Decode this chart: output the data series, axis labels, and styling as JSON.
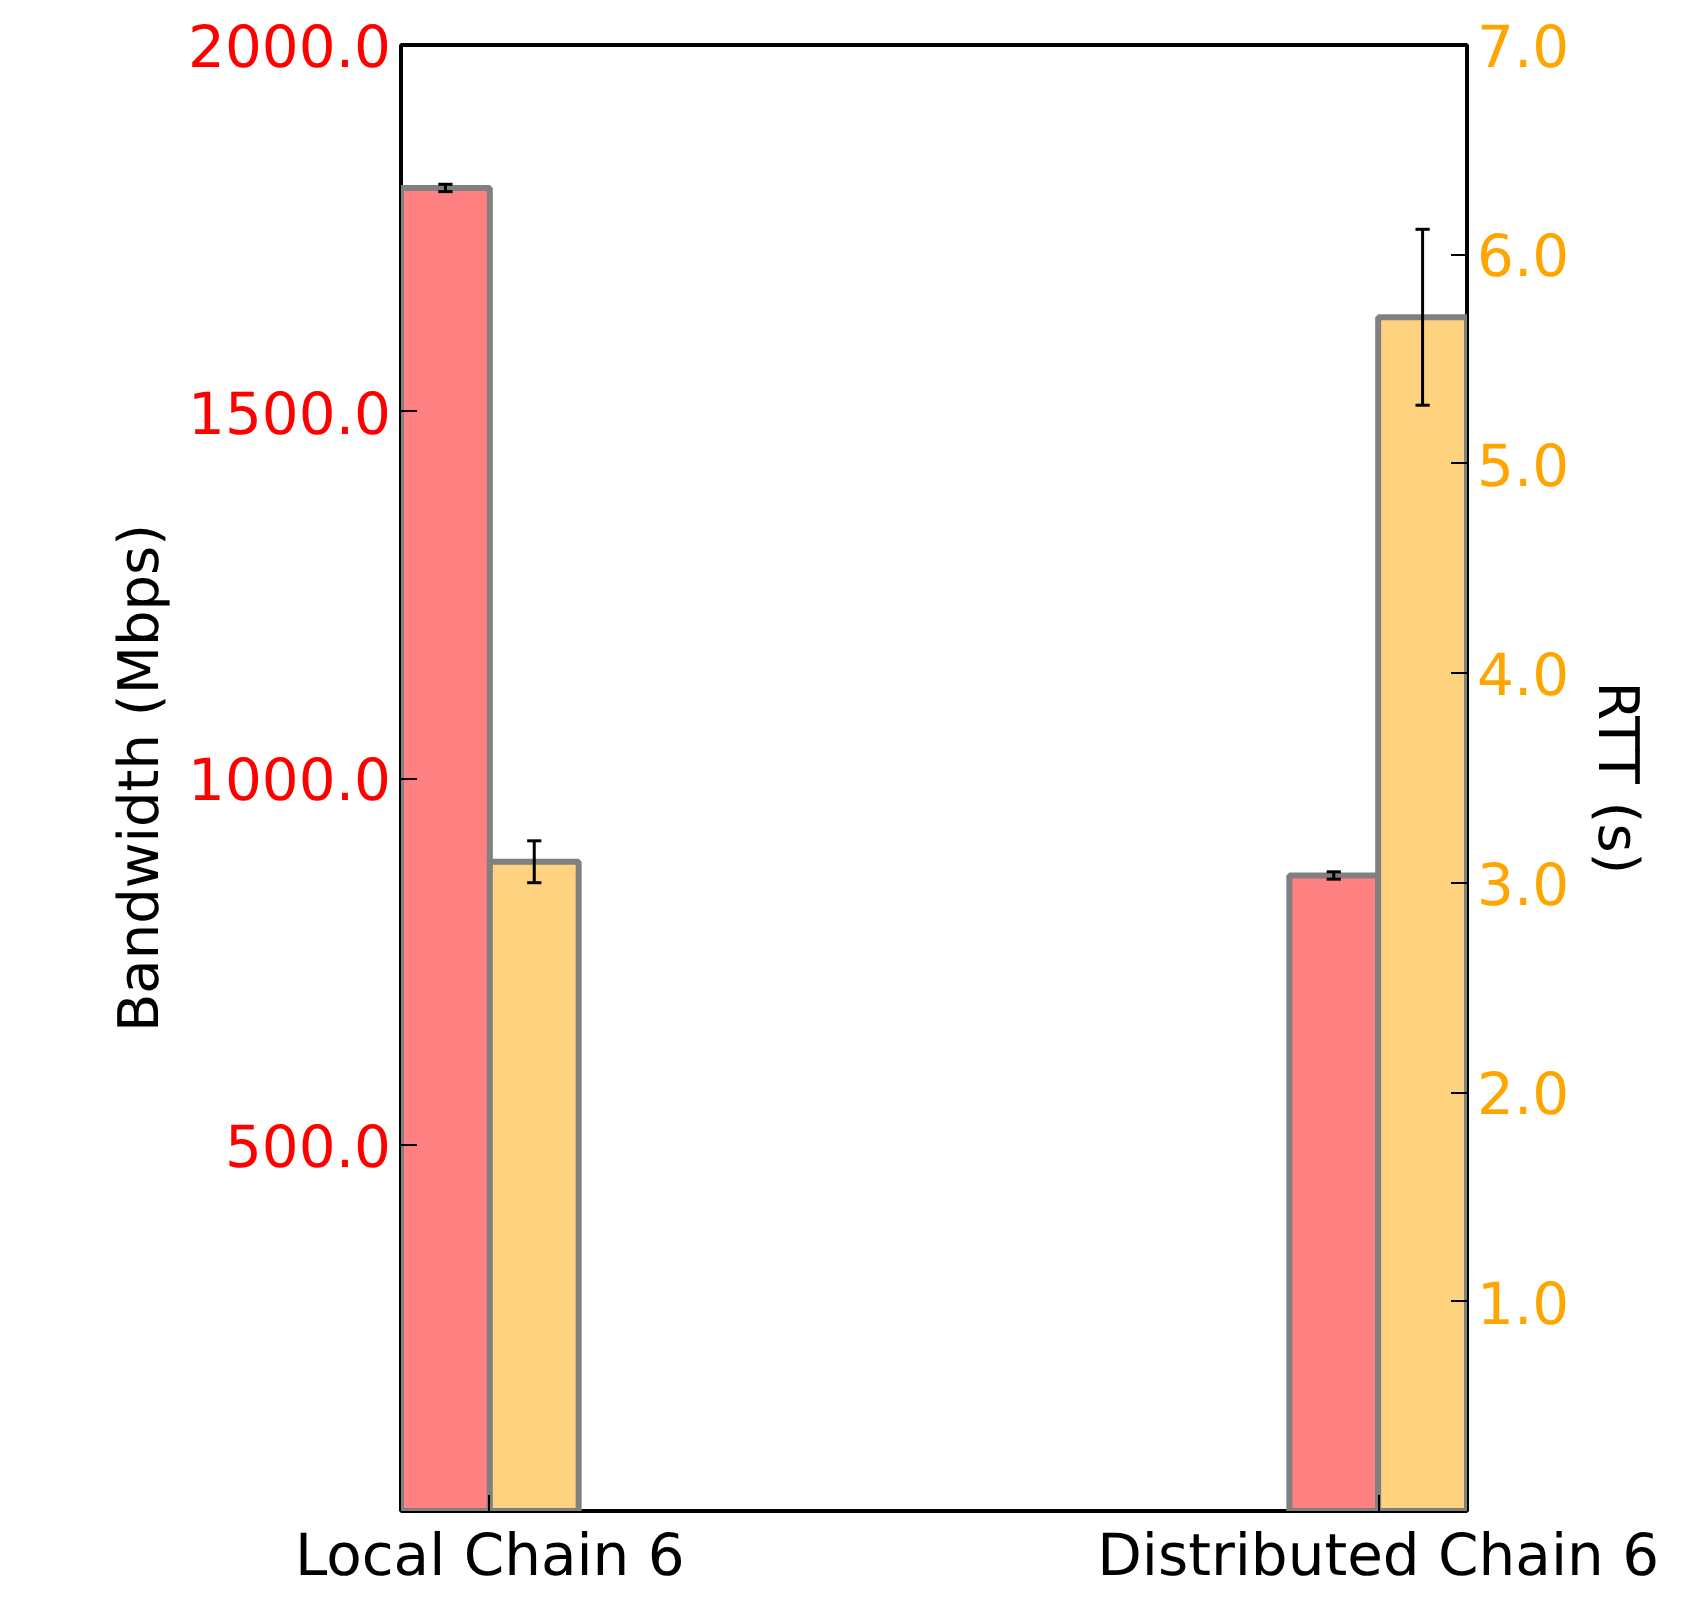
{
  "chart_data": {
    "type": "bar",
    "ylabel": "Bandwidth (Mbps)",
    "y2label": "RTT (s)",
    "categories": [
      "Local Chain 6",
      "Distributed Chain 6"
    ],
    "series": [
      {
        "color": "#ff8080",
        "values": [
          1805,
          867
        ],
        "errors": [
          5,
          5
        ]
      },
      {
        "color": "#ffd280",
        "values": [
          3.1,
          5.7
        ],
        "errors": [
          0.1,
          0.42
        ],
        "axis": "y2"
      }
    ],
    "ylim": [
      0,
      2000
    ],
    "yticks": [
      {
        "value": 500,
        "label": "500.0"
      },
      {
        "value": 1000,
        "label": "1000.0"
      },
      {
        "value": 1500,
        "label": "1500.0"
      },
      {
        "value": 2000,
        "label": "2000.0"
      }
    ],
    "y2lim": [
      0,
      7
    ],
    "y2ticks": [
      {
        "value": 1,
        "label": "1.0"
      },
      {
        "value": 2,
        "label": "2.0"
      },
      {
        "value": 3,
        "label": "3.0"
      },
      {
        "value": 4,
        "label": "4.0"
      },
      {
        "value": 5,
        "label": "5.0"
      },
      {
        "value": 6,
        "label": "6.0"
      },
      {
        "value": 7,
        "label": "7.0"
      }
    ],
    "grid": false
  }
}
